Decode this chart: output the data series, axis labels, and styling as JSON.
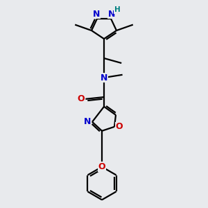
{
  "bg_color": "#e8eaed",
  "atom_colors": {
    "C": "#000000",
    "N": "#0000cc",
    "O": "#cc0000",
    "H": "#008080"
  },
  "bond_color": "#000000",
  "figsize": [
    3.0,
    3.0
  ],
  "dpi": 100
}
